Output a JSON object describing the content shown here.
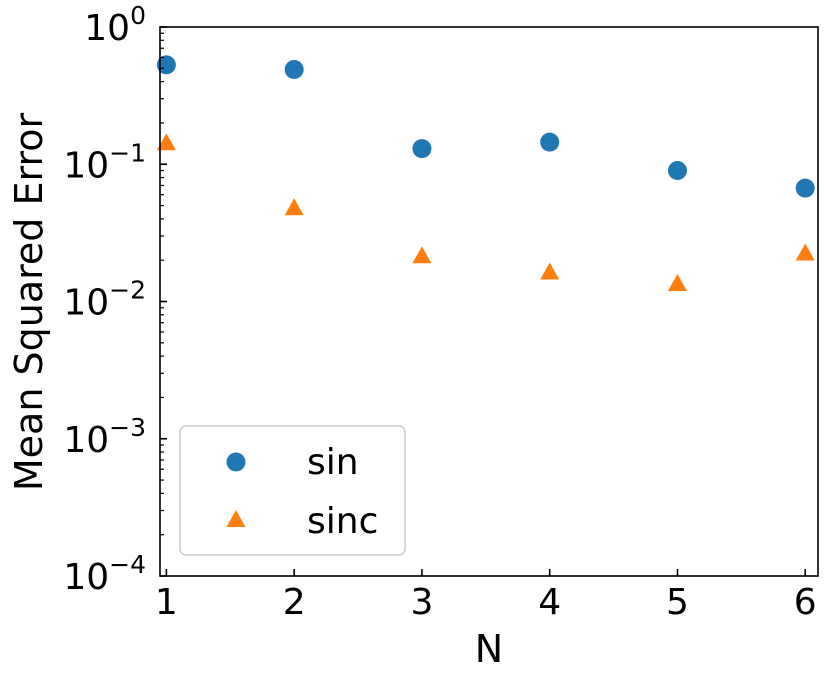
{
  "chart_data": {
    "type": "scatter",
    "title": "",
    "xlabel": "N",
    "ylabel": "Mean Squared Error",
    "xlim": [
      0.95,
      6.1
    ],
    "ylim": [
      0.0001,
      1
    ],
    "yscale": "log",
    "xticks": [
      "1",
      "2",
      "3",
      "4",
      "5",
      "6"
    ],
    "yticks": [
      {
        "base": "10",
        "exp": "0",
        "value": 1
      },
      {
        "base": "10",
        "exp": "−1",
        "value": 0.1
      },
      {
        "base": "10",
        "exp": "−2",
        "value": 0.01
      },
      {
        "base": "10",
        "exp": "−3",
        "value": 0.001
      },
      {
        "base": "10",
        "exp": "−4",
        "value": 0.0001
      }
    ],
    "grid": false,
    "legend_position": "lower-left",
    "x": [
      1,
      2,
      3,
      4,
      5,
      6
    ],
    "series": [
      {
        "name": "sin",
        "marker": "circle",
        "color": "#1f77b4",
        "values": [
          0.53,
          0.49,
          0.13,
          0.145,
          0.09,
          0.067
        ]
      },
      {
        "name": "sinc",
        "marker": "triangle",
        "color": "#ff7f0e",
        "values": [
          0.14,
          0.047,
          0.021,
          0.016,
          0.0132,
          0.022
        ]
      }
    ]
  }
}
